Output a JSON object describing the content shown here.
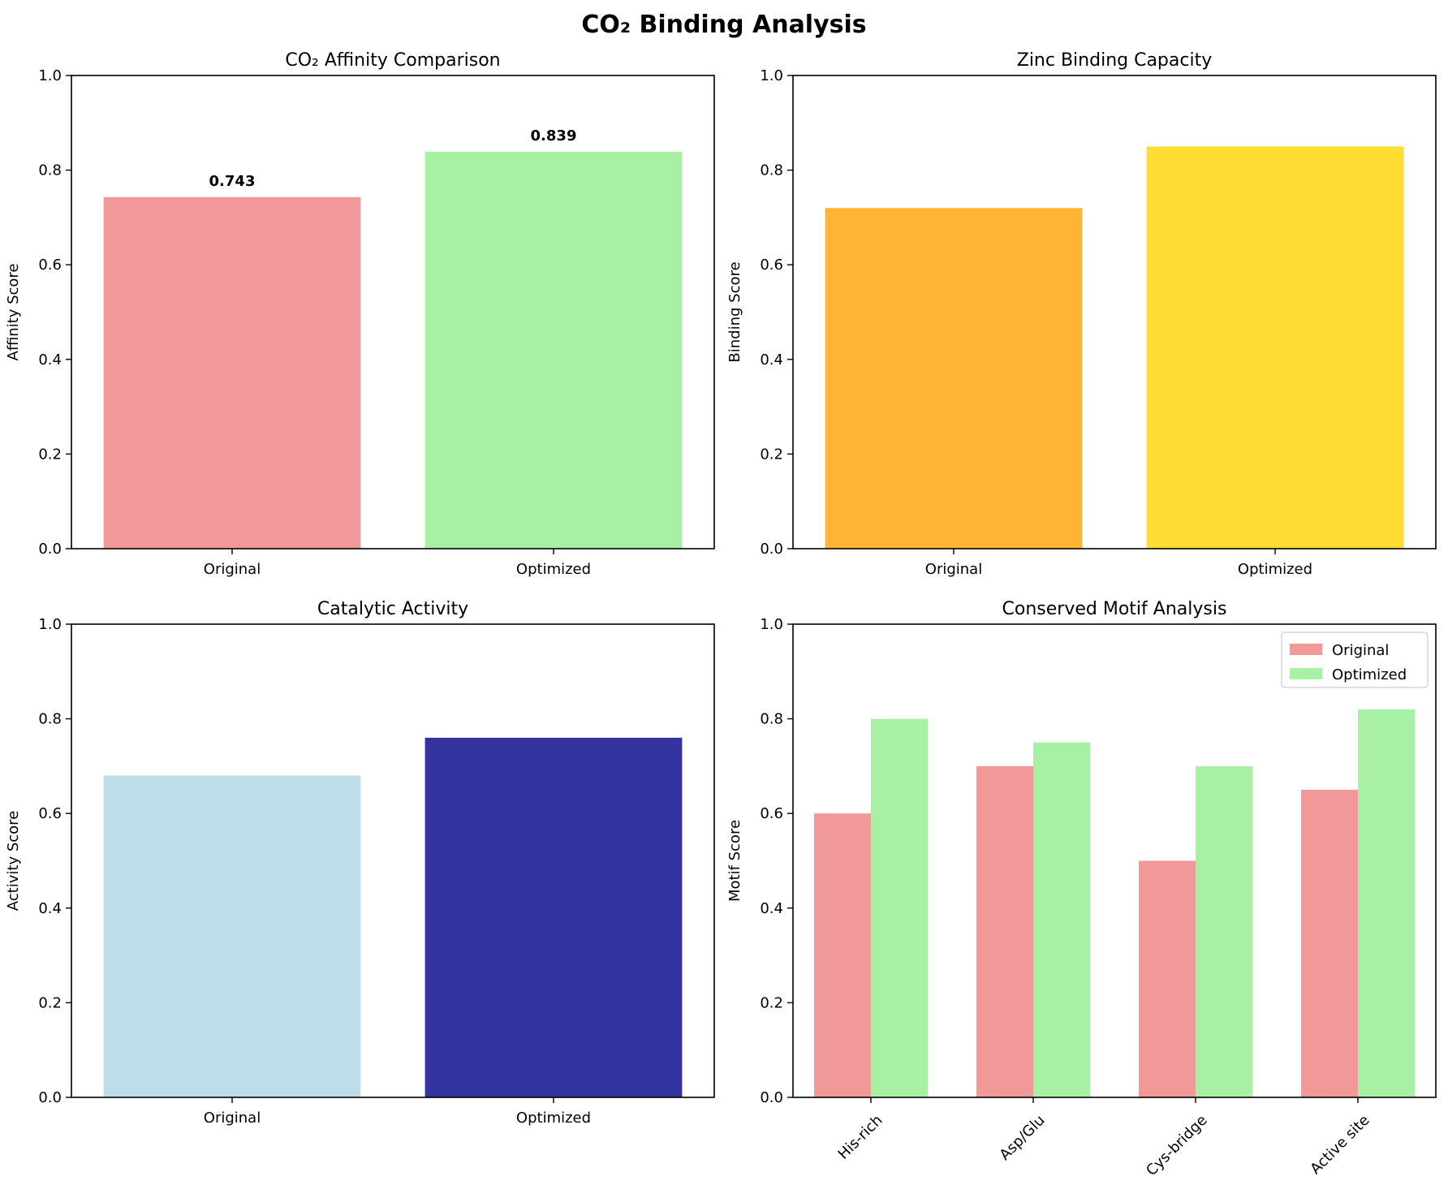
{
  "figure_title": "CO₂ Binding Analysis",
  "colors": {
    "original": "#f19999",
    "optimized": "#a8f0a3",
    "zinc_original": "#ffb533",
    "zinc_optimized": "#ffdd33",
    "activity_original": "#bddee8",
    "activity_optimized": "#3434a0"
  },
  "chart_data": [
    {
      "type": "bar",
      "title": "CO₂ Affinity Comparison",
      "xlabel": "",
      "ylabel": "Affinity Score",
      "categories": [
        "Original",
        "Optimized"
      ],
      "values": [
        0.743,
        0.839
      ],
      "data_labels": [
        "0.743",
        "0.839"
      ],
      "bar_colors": [
        "#f19999",
        "#a8f0a3"
      ],
      "ylim": [
        0,
        1.0
      ],
      "yticks": [
        "0.0",
        "0.2",
        "0.4",
        "0.6",
        "0.8",
        "1.0"
      ],
      "grid": false
    },
    {
      "type": "bar",
      "title": "Zinc Binding Capacity",
      "xlabel": "",
      "ylabel": "Binding Score",
      "categories": [
        "Original",
        "Optimized"
      ],
      "values": [
        0.72,
        0.85
      ],
      "bar_colors": [
        "#ffb533",
        "#ffdd33"
      ],
      "ylim": [
        0,
        1.0
      ],
      "yticks": [
        "0.0",
        "0.2",
        "0.4",
        "0.6",
        "0.8",
        "1.0"
      ],
      "grid": false
    },
    {
      "type": "bar",
      "title": "Catalytic Activity",
      "xlabel": "",
      "ylabel": "Activity Score",
      "categories": [
        "Original",
        "Optimized"
      ],
      "values": [
        0.68,
        0.76
      ],
      "bar_colors": [
        "#bddee8",
        "#3434a0"
      ],
      "ylim": [
        0,
        1.0
      ],
      "yticks": [
        "0.0",
        "0.2",
        "0.4",
        "0.6",
        "0.8",
        "1.0"
      ],
      "grid": false
    },
    {
      "type": "bar",
      "title": "Conserved Motif Analysis",
      "xlabel": "",
      "ylabel": "Motif Score",
      "categories": [
        "His-rich",
        "Asp/Glu",
        "Cys-bridge",
        "Active site"
      ],
      "series": [
        {
          "name": "Original",
          "values": [
            0.6,
            0.7,
            0.5,
            0.65
          ],
          "color": "#f19999"
        },
        {
          "name": "Optimized",
          "values": [
            0.8,
            0.75,
            0.7,
            0.82
          ],
          "color": "#a8f0a3"
        }
      ],
      "ylim": [
        0,
        1.0
      ],
      "yticks": [
        "0.0",
        "0.2",
        "0.4",
        "0.6",
        "0.8",
        "1.0"
      ],
      "legend_position": "top-right",
      "xtick_rotation": "45 degrees",
      "grid": false
    }
  ]
}
